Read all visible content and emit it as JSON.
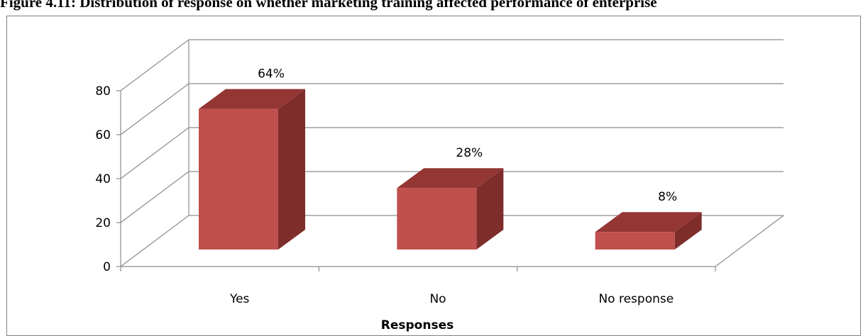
{
  "figure_caption": "Figure 4.11: Distribution of response on whether marketing training affected performance of enterprise",
  "colors": {
    "bar_front": "#c0504d",
    "bar_side": "#7f2d2b",
    "bar_top": "#943634",
    "grid": "#8c8c8c",
    "axis": "#8c8c8c"
  },
  "chart_data": {
    "type": "bar",
    "categories": [
      "Yes",
      "No",
      "No response"
    ],
    "values": [
      64,
      28,
      8
    ],
    "data_labels": [
      "64%",
      "28%",
      "8%"
    ],
    "xlabel": "Responses",
    "ylabel": "",
    "ylim": [
      0,
      80
    ],
    "yticks": [
      0,
      20,
      40,
      60,
      80
    ],
    "grid": true,
    "legend": "none",
    "style": "3d-column"
  }
}
